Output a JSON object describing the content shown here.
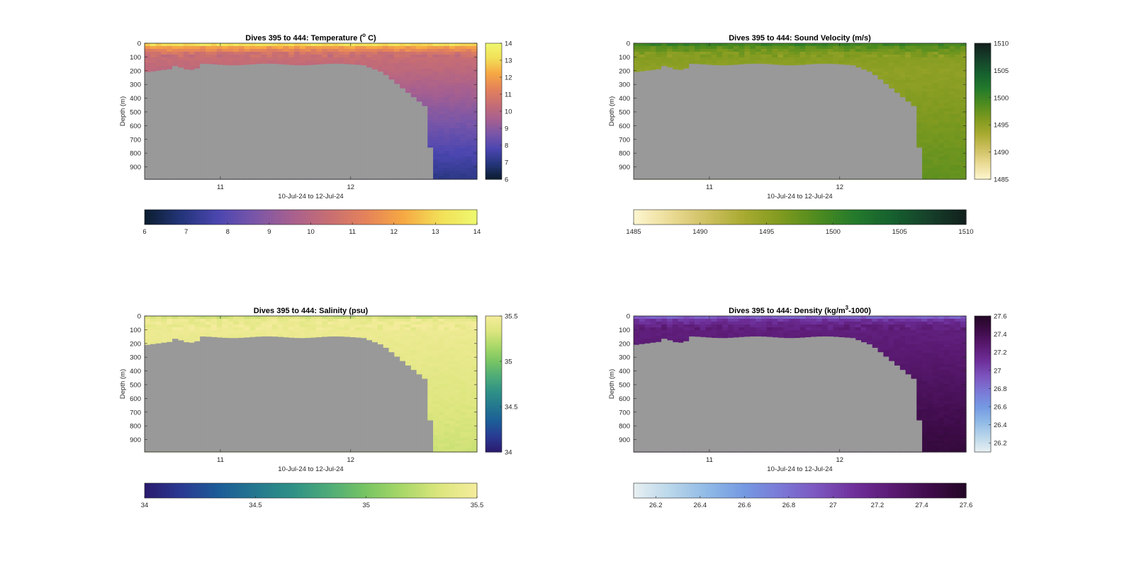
{
  "figure": {
    "background": "#ffffff",
    "missing_color": "#999999"
  },
  "chart_data": [
    {
      "id": "temperature",
      "type": "heatmap",
      "title": "Dives 395 to 444: Temperature (°C)",
      "title_parts": {
        "before": "Dives 395 to 444: Temperature (",
        "sup": "o",
        "after": " C)"
      },
      "xlabel": "10-Jul-24 to 12-Jul-24",
      "ylabel": "Depth (m)",
      "x_ticks": [
        "11",
        "12"
      ],
      "y_ticks": [
        "0",
        "100",
        "200",
        "300",
        "400",
        "500",
        "600",
        "700",
        "800",
        "900"
      ],
      "ylim": [
        0,
        990
      ],
      "clim": [
        6,
        14
      ],
      "colorbar_ticks": [
        "6",
        "7",
        "8",
        "9",
        "10",
        "11",
        "12",
        "13",
        "14"
      ],
      "colormap": [
        "#0b1d2e",
        "#24357a",
        "#4b46b0",
        "#7a56a8",
        "#a8608e",
        "#c86e73",
        "#e5835a",
        "#f6a843",
        "#f2df57",
        "#eef96e"
      ],
      "profile": {
        "surface": 14,
        "mixed": 12.3,
        "thermocline": 10.5,
        "deep_top": 10.1,
        "deep_bottom": 7.0
      }
    },
    {
      "id": "sound_velocity",
      "type": "heatmap",
      "title": "Dives 395 to 444: Sound Velocity (m/s)",
      "title_parts": {
        "before": "Dives 395 to 444: Sound Velocity (m/s)",
        "sup": "",
        "after": ""
      },
      "xlabel": "10-Jul-24 to 12-Jul-24",
      "ylabel": "Depth (m)",
      "x_ticks": [
        "11",
        "12"
      ],
      "y_ticks": [
        "0",
        "100",
        "200",
        "300",
        "400",
        "500",
        "600",
        "700",
        "800",
        "900"
      ],
      "ylim": [
        0,
        990
      ],
      "clim": [
        1485,
        1510
      ],
      "colorbar_ticks": [
        "1485",
        "1490",
        "1495",
        "1500",
        "1505",
        "1510"
      ],
      "colormap": [
        "#fdf6d0",
        "#ebdb96",
        "#cdc060",
        "#a8aa30",
        "#7f9a1f",
        "#4d8b1f",
        "#237a2c",
        "#16602f",
        "#16402a",
        "#121f1c"
      ],
      "profile": {
        "surface": 1501.5,
        "mixed": 1498.5,
        "thermocline": 1495.8,
        "deep_top": 1495.0,
        "deep_bottom": 1497.8
      }
    },
    {
      "id": "salinity",
      "type": "heatmap",
      "title": "Dives 395 to 444: Salinity (psu)",
      "title_parts": {
        "before": "Dives 395 to 444: Salinity (psu)",
        "sup": "",
        "after": ""
      },
      "xlabel": "10-Jul-24 to 12-Jul-24",
      "ylabel": "Depth (m)",
      "x_ticks": [
        "11",
        "12"
      ],
      "y_ticks": [
        "0",
        "100",
        "200",
        "300",
        "400",
        "500",
        "600",
        "700",
        "800",
        "900"
      ],
      "ylim": [
        0,
        990
      ],
      "clim": [
        34,
        35.5
      ],
      "colorbar_ticks": [
        "34",
        "34.5",
        "35",
        "35.5"
      ],
      "colormap": [
        "#2a1a6e",
        "#2a3a92",
        "#1c5c98",
        "#24778f",
        "#2f9186",
        "#4eab78",
        "#78c563",
        "#aad868",
        "#dde67e",
        "#f4ec9c"
      ],
      "profile": {
        "surface": 35.2,
        "mixed": 35.42,
        "thermocline": 35.45,
        "deep_top": 35.42,
        "deep_bottom": 35.28
      }
    },
    {
      "id": "density",
      "type": "heatmap",
      "title": "Dives 395 to 444: Density (kg/m³-1000)",
      "title_parts": {
        "before": "Dives 395 to 444: Density (kg/m",
        "sup": "3",
        "after": "-1000)"
      },
      "xlabel": "10-Jul-24 to 12-Jul-24",
      "ylabel": "Depth (m)",
      "x_ticks": [
        "11",
        "12"
      ],
      "y_ticks": [
        "0",
        "100",
        "200",
        "300",
        "400",
        "500",
        "600",
        "700",
        "800",
        "900"
      ],
      "ylim": [
        0,
        990
      ],
      "clim": [
        26.1,
        27.6
      ],
      "colorbar_ticks": [
        "26.2",
        "26.4",
        "26.6",
        "26.8",
        "27",
        "27.2",
        "27.4",
        "27.6"
      ],
      "colormap": [
        "#e8f0f2",
        "#b9d6ea",
        "#8fb9e6",
        "#7499e2",
        "#7b78d6",
        "#7c55be",
        "#6e2f9a",
        "#5a1a72",
        "#3f0c4a",
        "#230725"
      ],
      "profile": {
        "surface": 26.75,
        "mixed": 27.05,
        "thermocline": 27.22,
        "deep_top": 27.25,
        "deep_bottom": 27.5
      }
    }
  ]
}
